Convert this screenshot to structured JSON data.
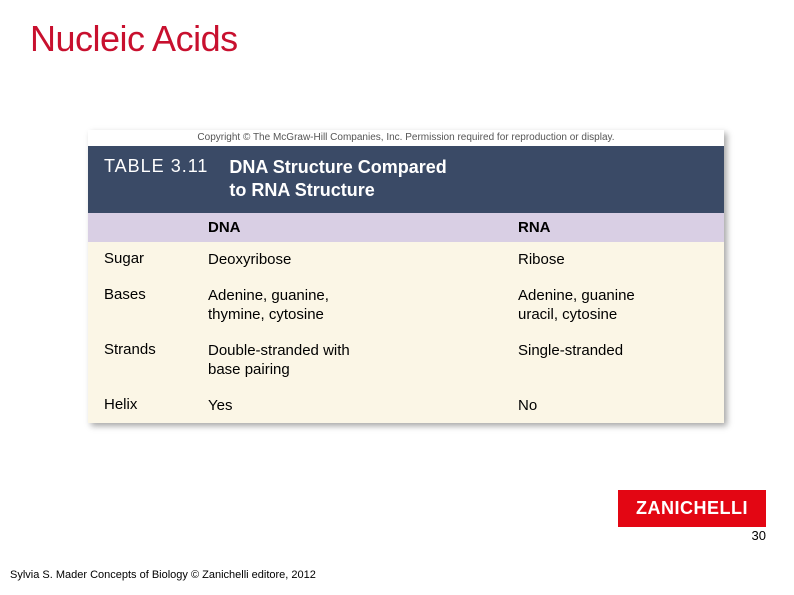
{
  "slide": {
    "title": "Nucleic Acids",
    "title_color": "#c8102e"
  },
  "table": {
    "copyright_strip": "Copyright © The McGraw-Hill Companies, Inc. Permission required for reproduction or display.",
    "header_bg": "#3a4a66",
    "table_number": "TABLE 3.11",
    "table_title_line1": "DNA Structure Compared",
    "table_title_line2": "to RNA Structure",
    "col_header_bg": "#d9cfe4",
    "columns": {
      "c1": "",
      "c2": "DNA",
      "c3": "RNA"
    },
    "body_bg": "#fbf6e6",
    "rows": [
      {
        "c1": "Sugar",
        "c2": "Deoxyribose",
        "c3": "Ribose"
      },
      {
        "c1": "Bases",
        "c2": "Adenine, guanine,\nthymine, cytosine",
        "c3": "Adenine, guanine\nuracil, cytosine"
      },
      {
        "c1": "Strands",
        "c2": "Double-stranded with\nbase pairing",
        "c3": "Single-stranded"
      },
      {
        "c1": "Helix",
        "c2": "Yes",
        "c3": "No"
      }
    ]
  },
  "logo": {
    "text": "ZANICHELLI",
    "bg": "#e30613"
  },
  "page_number": "30",
  "footer": "Sylvia S. Mader Concepts of Biology © Zanichelli editore, 2012"
}
